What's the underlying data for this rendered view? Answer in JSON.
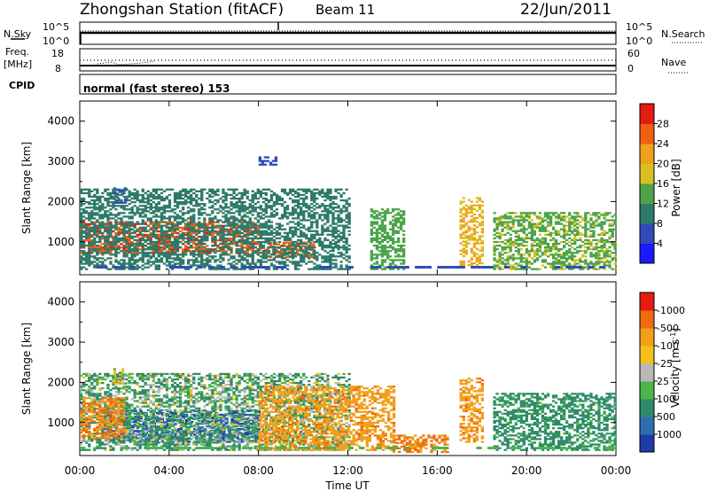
{
  "header": {
    "station": "Zhongshan Station (fitACF)",
    "beam": "Beam 11",
    "date": "22/Jun/2011"
  },
  "status_panels": {
    "nsky": {
      "label": "N.Sky",
      "tick_top": "10^5",
      "tick_bottom": "10^0"
    },
    "nsearch": {
      "label": "N.Search",
      "tick_top": "10^5",
      "tick_bottom": "10^0"
    },
    "freq": {
      "label_line1": "Freq.",
      "label_line2": "[MHz]",
      "tick_top": "18",
      "tick_bottom": "8"
    },
    "nave": {
      "label": "Nave",
      "tick_top": "60",
      "tick_bottom": "0"
    },
    "cpid": {
      "label": "CPID",
      "text": "normal (fast stereo) 153"
    }
  },
  "x_axis": {
    "label": "Time UT",
    "ticks": [
      "00:00",
      "04:00",
      "08:00",
      "12:00",
      "16:00",
      "20:00",
      "00:00"
    ],
    "range_hours": [
      0,
      24
    ]
  },
  "chart_data": [
    {
      "type": "heatmap",
      "name": "power",
      "x_unit": "hours UT",
      "xlim": [
        0,
        24
      ],
      "ylabel": "Slant Range [km]",
      "ylim": [
        180,
        4500
      ],
      "yticks": [
        1000,
        2000,
        3000,
        4000
      ],
      "colorbar": {
        "label": "Power [dB]",
        "tick_labels": [
          "4",
          "8",
          "12",
          "16",
          "20",
          "24",
          "28"
        ],
        "levels": [
          0,
          4,
          8,
          12,
          16,
          20,
          24,
          28,
          32
        ],
        "colors": [
          "#1a1aff",
          "#2f4bb8",
          "#2e7a6a",
          "#4ca34a",
          "#d9c020",
          "#f0a01a",
          "#f06010",
          "#e51b10"
        ]
      },
      "features": [
        {
          "t": [
            0.0,
            8.0
          ],
          "range": [
            700,
            1500
          ],
          "value": 27
        },
        {
          "t": [
            8.0,
            10.5
          ],
          "range": [
            600,
            1000
          ],
          "value": 26
        },
        {
          "t": [
            0.0,
            12.0
          ],
          "range": [
            300,
            2300
          ],
          "value": 10
        },
        {
          "t": [
            13.0,
            14.5
          ],
          "range": [
            300,
            1800
          ],
          "value": 14
        },
        {
          "t": [
            17.0,
            18.0
          ],
          "range": [
            400,
            2100
          ],
          "value": 20
        },
        {
          "t": [
            18.5,
            24.0
          ],
          "range": [
            300,
            1700
          ],
          "value": 15
        },
        {
          "t": [
            1.5,
            2.0
          ],
          "range": [
            1950,
            2350
          ],
          "value": 8
        },
        {
          "t": [
            8.0,
            8.8
          ],
          "range": [
            2900,
            3100
          ],
          "value": 6
        }
      ]
    },
    {
      "type": "heatmap",
      "name": "velocity",
      "x_unit": "hours UT",
      "xlim": [
        0,
        24
      ],
      "ylabel": "Slant Range [km]",
      "ylim": [
        180,
        4500
      ],
      "yticks": [
        1000,
        2000,
        3000,
        4000
      ],
      "colorbar": {
        "label": "Velocity [m s^-1]",
        "tick_labels": [
          "1000",
          "500",
          "100",
          "25",
          "-25",
          "-100",
          "-500",
          "-1000"
        ],
        "levels": [
          1200,
          1000,
          500,
          100,
          25,
          -25,
          -100,
          -500,
          -1000,
          -1200
        ],
        "colors": [
          "#1e3ca6",
          "#2b6fb2",
          "#2f8a6a",
          "#4bb54c",
          "#b8b8b8",
          "#f2c01a",
          "#f0a01a",
          "#f06a10",
          "#e51b10"
        ]
      },
      "features": [
        {
          "t": [
            1.0,
            8.0
          ],
          "range": [
            500,
            1300
          ],
          "value": 1000
        },
        {
          "t": [
            0.0,
            12.0
          ],
          "range": [
            300,
            2200
          ],
          "value": 100
        },
        {
          "t": [
            0.0,
            2.0
          ],
          "range": [
            600,
            1600
          ],
          "value": -500
        },
        {
          "t": [
            8.0,
            14.0
          ],
          "range": [
            300,
            1900
          ],
          "value": -400
        },
        {
          "t": [
            14.0,
            16.5
          ],
          "range": [
            250,
            700
          ],
          "value": -500
        },
        {
          "t": [
            17.0,
            18.0
          ],
          "range": [
            500,
            2100
          ],
          "value": -400
        },
        {
          "t": [
            18.5,
            24.0
          ],
          "range": [
            300,
            1700
          ],
          "value": 200
        },
        {
          "t": [
            1.5,
            2.0
          ],
          "range": [
            1950,
            2350
          ],
          "value": 0
        }
      ]
    }
  ]
}
